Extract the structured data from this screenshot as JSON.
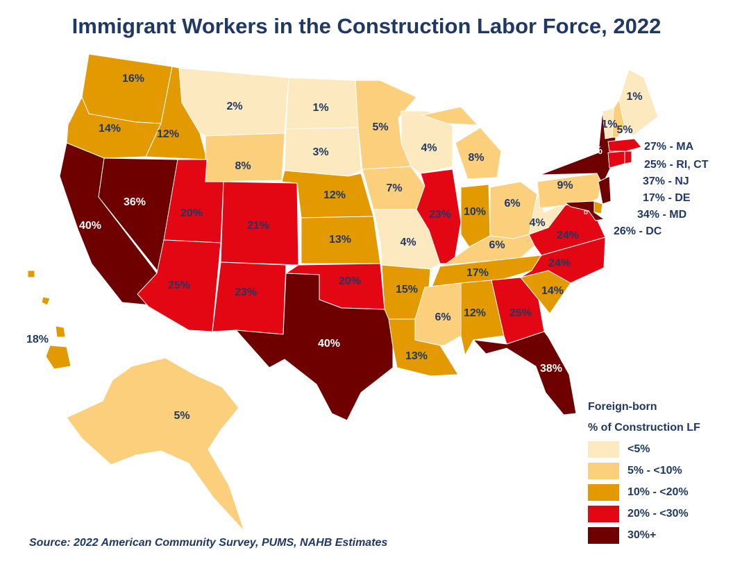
{
  "title": "Immigrant Workers in the Construction Labor Force, 2022",
  "source": "Source: 2022 American Community Survey, PUMS, NAHB Estimates",
  "legend": {
    "heading1": "Foreign-born",
    "heading2": "% of Construction LF",
    "items": [
      {
        "label": "<5%",
        "color": "#fde9c0"
      },
      {
        "label": "5% - <10%",
        "color": "#fccf7c"
      },
      {
        "label": "10% - <20%",
        "color": "#e29a00"
      },
      {
        "label": "20% - <30%",
        "color": "#e30613"
      },
      {
        "label": "30%+",
        "color": "#6f0000"
      }
    ]
  },
  "states": [
    {
      "id": "WA",
      "value": "16%",
      "cls": 2
    },
    {
      "id": "OR",
      "value": "14%",
      "cls": 2
    },
    {
      "id": "CA",
      "value": "40%",
      "cls": 4
    },
    {
      "id": "ID",
      "value": "12%",
      "cls": 2
    },
    {
      "id": "NV",
      "value": "36%",
      "cls": 4
    },
    {
      "id": "MT",
      "value": "2%",
      "cls": 0
    },
    {
      "id": "WY",
      "value": "8%",
      "cls": 1
    },
    {
      "id": "UT",
      "value": "20%",
      "cls": 3
    },
    {
      "id": "AZ",
      "value": "25%",
      "cls": 3
    },
    {
      "id": "CO",
      "value": "21%",
      "cls": 3
    },
    {
      "id": "NM",
      "value": "23%",
      "cls": 3
    },
    {
      "id": "ND",
      "value": "1%",
      "cls": 0
    },
    {
      "id": "SD",
      "value": "3%",
      "cls": 0
    },
    {
      "id": "NE",
      "value": "12%",
      "cls": 2
    },
    {
      "id": "KS",
      "value": "13%",
      "cls": 2
    },
    {
      "id": "OK",
      "value": "20%",
      "cls": 3
    },
    {
      "id": "TX",
      "value": "40%",
      "cls": 4
    },
    {
      "id": "MN",
      "value": "5%",
      "cls": 1
    },
    {
      "id": "IA",
      "value": "7%",
      "cls": 1
    },
    {
      "id": "MO",
      "value": "4%",
      "cls": 0
    },
    {
      "id": "AR",
      "value": "15%",
      "cls": 2
    },
    {
      "id": "LA",
      "value": "13%",
      "cls": 2
    },
    {
      "id": "WI",
      "value": "4%",
      "cls": 0
    },
    {
      "id": "IL",
      "value": "23%",
      "cls": 3
    },
    {
      "id": "MI",
      "value": "8%",
      "cls": 1
    },
    {
      "id": "IN",
      "value": "10%",
      "cls": 2
    },
    {
      "id": "OH",
      "value": "6%",
      "cls": 1
    },
    {
      "id": "KY",
      "value": "6%",
      "cls": 1
    },
    {
      "id": "TN",
      "value": "17%",
      "cls": 2
    },
    {
      "id": "MS",
      "value": "6%",
      "cls": 1
    },
    {
      "id": "AL",
      "value": "12%",
      "cls": 2
    },
    {
      "id": "GA",
      "value": "25%",
      "cls": 3
    },
    {
      "id": "FL",
      "value": "38%",
      "cls": 4
    },
    {
      "id": "SC",
      "value": "14%",
      "cls": 2
    },
    {
      "id": "NC",
      "value": "24%",
      "cls": 3
    },
    {
      "id": "VA",
      "value": "24%",
      "cls": 3
    },
    {
      "id": "WV",
      "value": "4%",
      "cls": 0
    },
    {
      "id": "PA",
      "value": "9%",
      "cls": 1
    },
    {
      "id": "NY",
      "value": "37%",
      "cls": 4
    },
    {
      "id": "VT",
      "value": "1%",
      "cls": 0
    },
    {
      "id": "NH",
      "value": "5%",
      "cls": 1
    },
    {
      "id": "ME",
      "value": "1%",
      "cls": 0
    },
    {
      "id": "MA",
      "value": "27%",
      "cls": 3
    },
    {
      "id": "RI",
      "value": "25%",
      "cls": 3
    },
    {
      "id": "CT",
      "value": "25%",
      "cls": 3
    },
    {
      "id": "NJ",
      "value": "37%",
      "cls": 4
    },
    {
      "id": "DE",
      "value": "17%",
      "cls": 2
    },
    {
      "id": "MD",
      "value": "34%",
      "cls": 4
    },
    {
      "id": "DC",
      "value": "26%",
      "cls": 3
    },
    {
      "id": "AK",
      "value": "5%",
      "cls": 1
    },
    {
      "id": "HI",
      "value": "18%",
      "cls": 2
    }
  ],
  "northeast_labels": [
    {
      "id": "MA",
      "text": "27% - MA"
    },
    {
      "id": "RI-CT",
      "text": "25% - RI, CT"
    },
    {
      "id": "NJ",
      "text": "37% - NJ"
    },
    {
      "id": "DE",
      "text": "17% - DE"
    },
    {
      "id": "MD",
      "text": "34% - MD"
    },
    {
      "id": "DC",
      "text": "26% - DC"
    }
  ]
}
